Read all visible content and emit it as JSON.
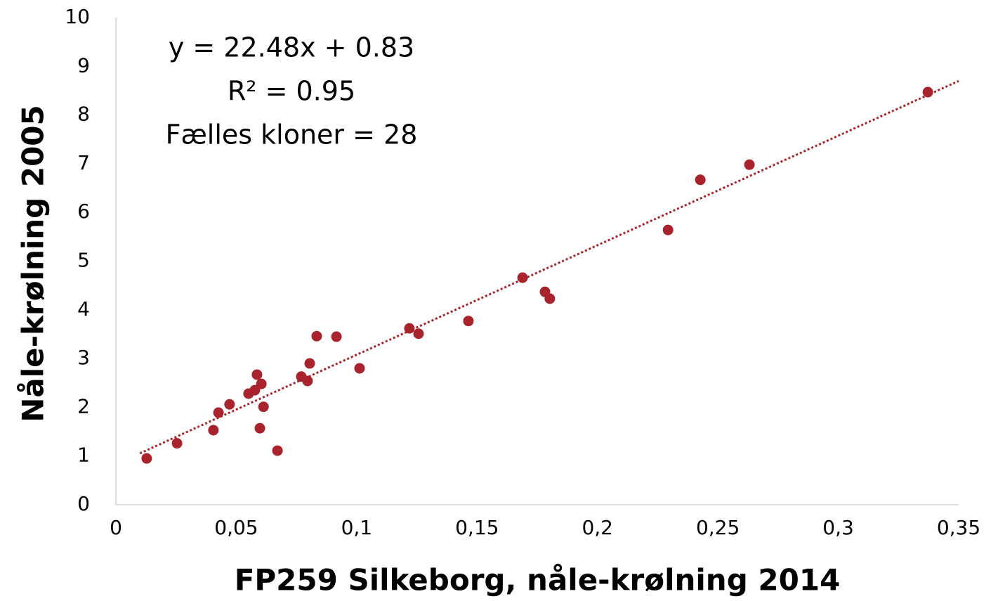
{
  "chart_data": {
    "type": "scatter",
    "xlabel": "FP259 Silkeborg, nåle-krølning  2014",
    "ylabel": "Nåle-krølning 2005",
    "annotations": [
      "y = 22.48x + 0.83",
      "R² = 0.95",
      "Fælles kloner = 28"
    ],
    "color": "#a8232b",
    "x": [
      0.0128,
      0.0254,
      0.0405,
      0.0426,
      0.0472,
      0.0551,
      0.0577,
      0.0586,
      0.0604,
      0.0598,
      0.0613,
      0.0671,
      0.077,
      0.0796,
      0.0805,
      0.0834,
      0.0916,
      0.1012,
      0.1219,
      0.1257,
      0.1464,
      0.1689,
      0.1782,
      0.1802,
      0.2293,
      0.2427,
      0.2631,
      0.3372
    ],
    "values": [
      0.95,
      1.26,
      1.53,
      1.89,
      2.06,
      2.28,
      2.35,
      2.67,
      2.48,
      1.57,
      2.01,
      1.11,
      2.63,
      2.54,
      2.9,
      3.46,
      3.45,
      2.8,
      3.62,
      3.51,
      3.77,
      4.66,
      4.37,
      4.23,
      5.64,
      6.67,
      6.98,
      8.47
    ],
    "trendline": {
      "slope": 22.48,
      "intercept": 0.83,
      "x": [
        0.01,
        0.35
      ]
    },
    "xlim": [
      0,
      0.35
    ],
    "xticks": [
      0,
      {
        "value": 0.05,
        "label": "0,05"
      },
      {
        "value": 0.1,
        "label": "0,1"
      },
      {
        "value": 0.15,
        "label": "0,15"
      },
      {
        "value": 0.2,
        "label": "0,2"
      },
      {
        "value": 0.25,
        "label": "0,25"
      },
      {
        "value": 0.3,
        "label": "0,3"
      },
      {
        "value": 0.35,
        "label": "0,35"
      }
    ],
    "ylim": [
      0,
      10
    ],
    "yticks": [
      0,
      1,
      2,
      3,
      4,
      5,
      6,
      7,
      8,
      9,
      10
    ],
    "grid": false
  }
}
